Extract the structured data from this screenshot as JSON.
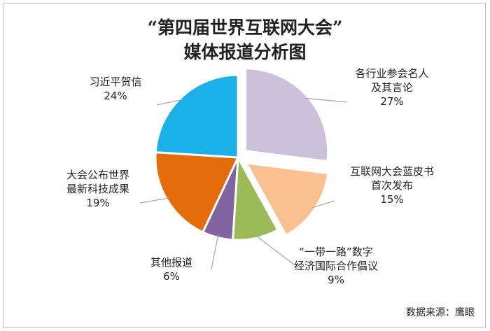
{
  "chart_data": {
    "type": "pie",
    "title": [
      "“第四届世界互联网大会”",
      "媒体报道分析图"
    ],
    "slices": [
      {
        "name": "各行业参会名人及其言论",
        "label_lines": [
          "各行业参会名人",
          "及其言论"
        ],
        "pct_label": "27%",
        "value": 27,
        "color": "#ccc0da",
        "explode": true
      },
      {
        "name": "互联网大会蓝皮书首次发布",
        "label_lines": [
          "互联网大会蓝皮书",
          "首次发布"
        ],
        "pct_label": "15%",
        "value": 15,
        "color": "#fac090",
        "explode": true
      },
      {
        "name": "“一带一路”数字经济国际合作倡议",
        "label_lines": [
          "“一带一路”数字",
          "经济国际合作倡议"
        ],
        "pct_label": "9%",
        "value": 9,
        "color": "#9bbb59",
        "explode": false
      },
      {
        "name": "其他报道",
        "label_lines": [
          "其他报道"
        ],
        "pct_label": "6%",
        "value": 6,
        "color": "#8064a2",
        "explode": false
      },
      {
        "name": "大会公布世界最新科技成果",
        "label_lines": [
          "大会公布世界",
          "最新科技成果"
        ],
        "pct_label": "19%",
        "value": 19,
        "color": "#e46c0a",
        "explode": false
      },
      {
        "name": "习近平贺信",
        "label_lines": [
          "习近平贺信"
        ],
        "pct_label": "24%",
        "value": 24,
        "color": "#1cb0ea",
        "explode": false
      }
    ],
    "legend": "none (data labels on slices)"
  },
  "footer": {
    "source": "数据来源：鹰眼"
  }
}
